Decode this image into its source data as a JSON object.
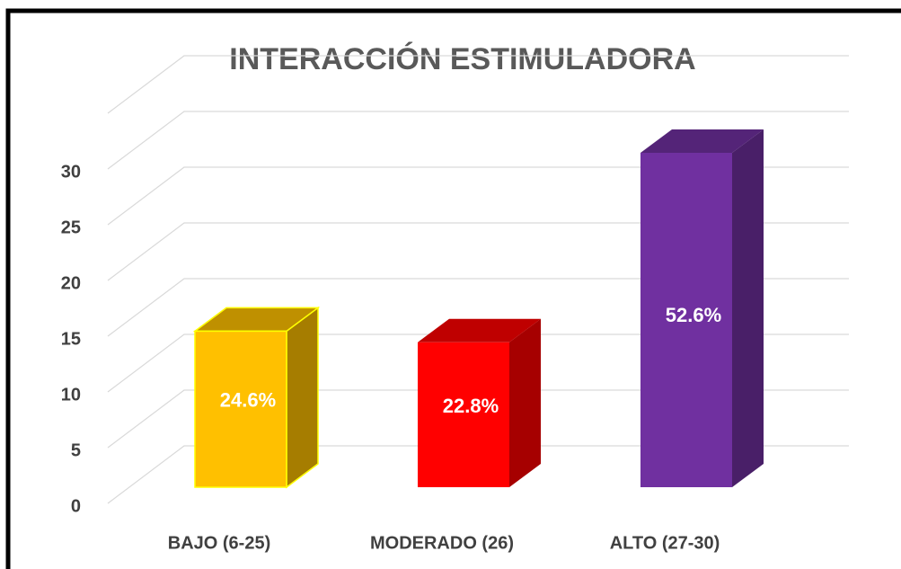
{
  "chart_data": {
    "type": "bar3d",
    "title": "INTERACCIÓN ESTIMULADORA",
    "categories": [
      "BAJO (6-25)",
      "MODERADO (26)",
      "ALTO (27-30)"
    ],
    "values": [
      14,
      13,
      30
    ],
    "data_labels": [
      "24.6%",
      "22.8%",
      "52.6%"
    ],
    "colors": [
      "#FFC000",
      "#FF0000",
      "#7030A0"
    ],
    "ylim": [
      0,
      30
    ],
    "yticks": [
      0,
      5,
      10,
      15,
      20,
      25,
      30
    ],
    "grid": true
  }
}
